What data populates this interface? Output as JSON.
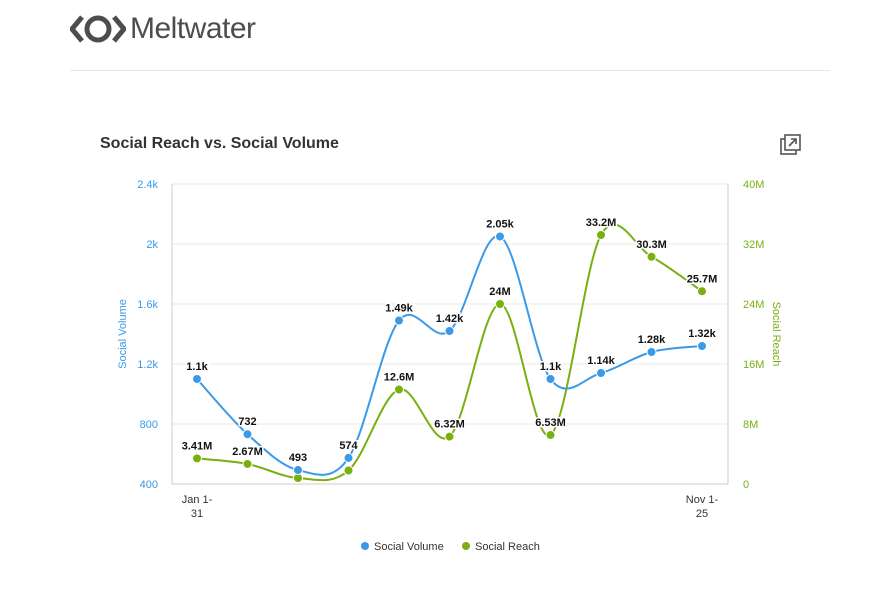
{
  "brand": {
    "name": "Meltwater",
    "logo_icon": "meltwater-logo-icon"
  },
  "header_title": "Social Reach vs. Social Volume",
  "expand_icon": "expand-icon",
  "colors": {
    "volume": "#3a9ae8",
    "reach": "#79b011",
    "text": "#333333",
    "grid": "#e8e8e8"
  },
  "chart_data": {
    "type": "line",
    "title": "Social Reach vs. Social Volume",
    "x_ticks": [
      "Jan 1-\n31",
      "Nov 1-\n25"
    ],
    "left_axis": {
      "label": "Social Volume",
      "ticks": [
        "400",
        "800",
        "1.2k",
        "1.6k",
        "2k",
        "2.4k"
      ],
      "ylim": [
        400,
        2400
      ]
    },
    "right_axis": {
      "label": "Social Reach",
      "ticks": [
        "0",
        "8M",
        "16M",
        "24M",
        "32M",
        "40M"
      ],
      "ylim": [
        0,
        40000000
      ]
    },
    "grid": true,
    "legend_position": "bottom-center",
    "series": [
      {
        "name": "Social Volume",
        "axis": "left",
        "values": [
          1100,
          732,
          493,
          574,
          1490,
          1420,
          2050,
          1100,
          1140,
          1280,
          1320
        ],
        "labels": [
          "1.1k",
          "732",
          "493",
          "574",
          "1.49k",
          "1.42k",
          "2.05k",
          "1.1k",
          "1.14k",
          "1.28k",
          "1.32k"
        ]
      },
      {
        "name": "Social Reach",
        "axis": "right",
        "values": [
          3410000,
          2670000,
          800000,
          1800000,
          12600000,
          6320000,
          24000000,
          6530000,
          33200000,
          30300000,
          25700000
        ],
        "labels": [
          "3.41M",
          "2.67M",
          "",
          "",
          "12.6M",
          "6.32M",
          "24M",
          "6.53M",
          "33.2M",
          "30.3M",
          "25.7M"
        ]
      }
    ]
  }
}
